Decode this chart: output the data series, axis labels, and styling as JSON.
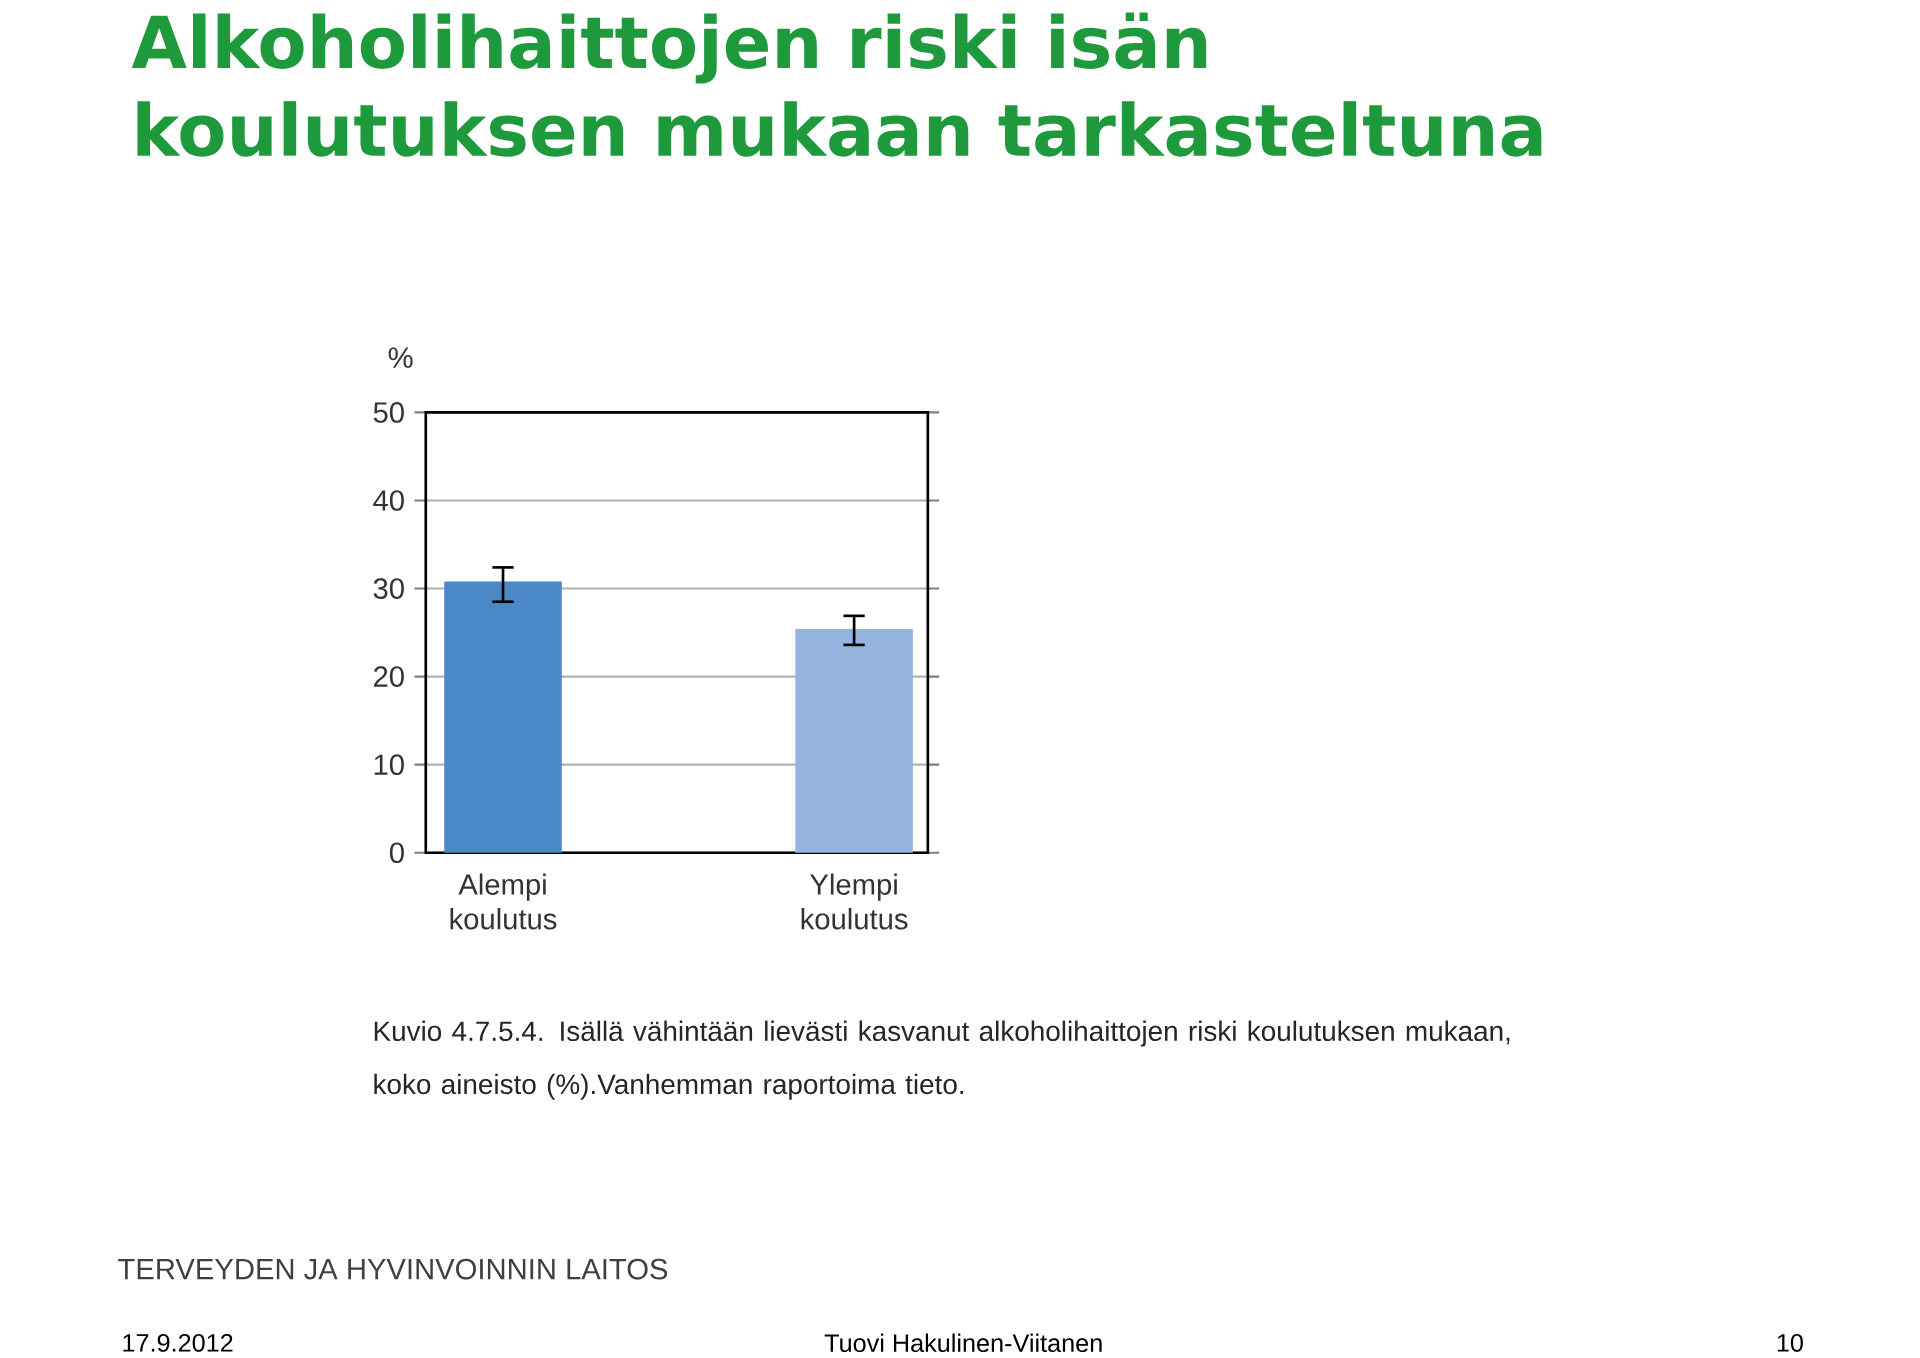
{
  "chart_data": {
    "type": "bar",
    "title": "Alkoholihaittojen riski isän koulutuksen mukaan tarkasteltuna",
    "ylabel": "%",
    "categories": [
      "Alempi koulutus",
      "Ylempi koulutus"
    ],
    "values": [
      30.8,
      25.4
    ],
    "errors": [
      [
        28.5,
        32.4
      ],
      [
        23.6,
        26.9
      ]
    ],
    "colors": [
      "#4a88c8",
      "#94b3de"
    ],
    "ylim": [
      0,
      50
    ],
    "yticks": [
      0,
      10,
      20,
      30,
      40,
      50
    ],
    "grid": "y",
    "annotations": [
      "Kuvio 4.7.5.4. Isällä vähintään lievästi kasvanut alkoholihaittojen riski koulutuksen mukaan, koko aineisto (%).Vanhemman raportoima tieto.",
      "TERVEYDEN JA HYVINVOINNIN LAITOS",
      "17.9.2012",
      "Tuovi Hakulinen-Viitanen",
      "10"
    ]
  }
}
